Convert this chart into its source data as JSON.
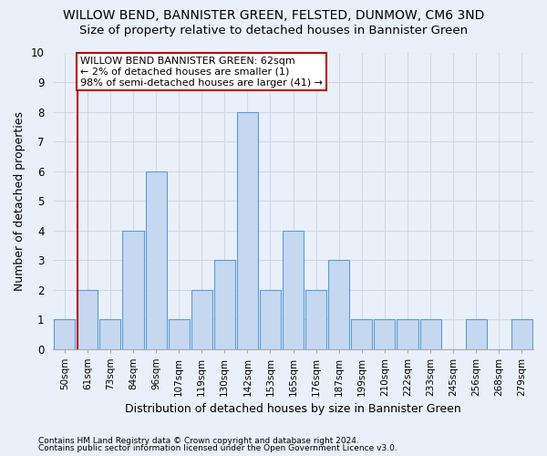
{
  "title": "WILLOW BEND, BANNISTER GREEN, FELSTED, DUNMOW, CM6 3ND",
  "subtitle": "Size of property relative to detached houses in Bannister Green",
  "xlabel": "Distribution of detached houses by size in Bannister Green",
  "ylabel": "Number of detached properties",
  "footnote1": "Contains HM Land Registry data © Crown copyright and database right 2024.",
  "footnote2": "Contains public sector information licensed under the Open Government Licence v3.0.",
  "annotation_line1": "WILLOW BEND BANNISTER GREEN: 62sqm",
  "annotation_line2": "← 2% of detached houses are smaller (1)",
  "annotation_line3": "98% of semi-detached houses are larger (41) →",
  "bins": [
    "50sqm",
    "61sqm",
    "73sqm",
    "84sqm",
    "96sqm",
    "107sqm",
    "119sqm",
    "130sqm",
    "142sqm",
    "153sqm",
    "165sqm",
    "176sqm",
    "187sqm",
    "199sqm",
    "210sqm",
    "222sqm",
    "233sqm",
    "245sqm",
    "256sqm",
    "268sqm",
    "279sqm"
  ],
  "bar_values": [
    1,
    2,
    1,
    4,
    6,
    1,
    2,
    3,
    8,
    2,
    4,
    2,
    3,
    1,
    1,
    1,
    1,
    0,
    1,
    0,
    1
  ],
  "bar_color": "#c5d8f0",
  "bar_edge_color": "#5b9bd5",
  "marker_x_bin": "61sqm",
  "marker_color": "#c00000",
  "ylim": [
    0,
    10
  ],
  "yticks": [
    0,
    1,
    2,
    3,
    4,
    5,
    6,
    7,
    8,
    9,
    10
  ],
  "annotation_box_facecolor": "#ffffff",
  "annotation_box_edgecolor": "#c00000",
  "bg_color": "#eaf0f9",
  "grid_color": "#d0d8e8",
  "title_fontsize": 10,
  "subtitle_fontsize": 9.5,
  "ylabel_fontsize": 9,
  "xlabel_fontsize": 9,
  "tick_fontsize": 7.5,
  "annotation_fontsize": 8,
  "footnote_fontsize": 6.5
}
